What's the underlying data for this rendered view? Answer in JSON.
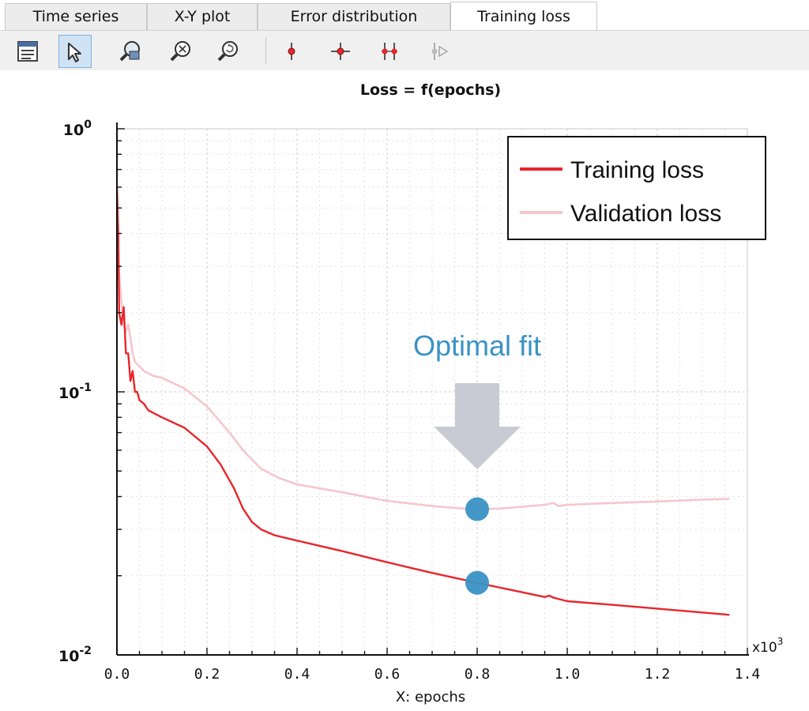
{
  "tabs": [
    {
      "label": "Time series"
    },
    {
      "label": "X-Y plot"
    },
    {
      "label": "Error distribution"
    },
    {
      "label": "Training loss",
      "active": true
    }
  ],
  "toolbar": {
    "buttons": [
      {
        "name": "properties-icon"
      },
      {
        "name": "cursor-select-icon",
        "selected": true
      },
      {
        "name": "zoom-region-icon"
      },
      {
        "name": "zoom-out-icon"
      },
      {
        "name": "zoom-reset-icon"
      },
      {
        "name": "marker-vertical-icon"
      },
      {
        "name": "marker-crosshair-icon"
      },
      {
        "name": "marker-double-icon"
      },
      {
        "name": "marker-play-icon"
      }
    ]
  },
  "chart_data": {
    "type": "line",
    "title": "Loss = f(epochs)",
    "xlabel": "X: epochs",
    "x_multiplier_label": "x10",
    "x_multiplier_exp": "3",
    "y_scale": "log",
    "xlim": [
      0.0,
      1.4
    ],
    "ylim": [
      0.01,
      1.0
    ],
    "x_ticks": [
      "0.0",
      "0.2",
      "0.4",
      "0.6",
      "0.8",
      "1.0",
      "1.2",
      "1.4"
    ],
    "y_ticks": [
      {
        "base": "10",
        "exp": "0",
        "value": 1.0
      },
      {
        "base": "10",
        "exp": "-1",
        "value": 0.1
      },
      {
        "base": "10",
        "exp": "-2",
        "value": 0.01
      }
    ],
    "grid": true,
    "legend_position": "top-right",
    "series": [
      {
        "name": "Training loss",
        "color": "#e8262b",
        "points": [
          [
            0.0,
            0.6
          ],
          [
            0.003,
            0.4
          ],
          [
            0.005,
            0.2
          ],
          [
            0.01,
            0.18
          ],
          [
            0.015,
            0.21
          ],
          [
            0.02,
            0.14
          ],
          [
            0.025,
            0.14
          ],
          [
            0.03,
            0.11
          ],
          [
            0.035,
            0.12
          ],
          [
            0.04,
            0.1
          ],
          [
            0.045,
            0.1
          ],
          [
            0.05,
            0.093
          ],
          [
            0.06,
            0.09
          ],
          [
            0.07,
            0.085
          ],
          [
            0.1,
            0.08
          ],
          [
            0.15,
            0.073
          ],
          [
            0.2,
            0.062
          ],
          [
            0.23,
            0.053
          ],
          [
            0.26,
            0.043
          ],
          [
            0.28,
            0.036
          ],
          [
            0.3,
            0.032
          ],
          [
            0.32,
            0.03
          ],
          [
            0.35,
            0.0285
          ],
          [
            0.4,
            0.0272
          ],
          [
            0.5,
            0.0248
          ],
          [
            0.6,
            0.0225
          ],
          [
            0.7,
            0.0205
          ],
          [
            0.8,
            0.0188
          ],
          [
            0.9,
            0.0173
          ],
          [
            0.95,
            0.0166
          ],
          [
            0.96,
            0.0168
          ],
          [
            0.97,
            0.0165
          ],
          [
            1.0,
            0.016
          ],
          [
            1.1,
            0.0155
          ],
          [
            1.2,
            0.015
          ],
          [
            1.3,
            0.0145
          ],
          [
            1.36,
            0.0142
          ]
        ]
      },
      {
        "name": "Validation loss",
        "color": "#f5c6cd",
        "points": [
          [
            0.0,
            0.5
          ],
          [
            0.003,
            0.35
          ],
          [
            0.005,
            0.28
          ],
          [
            0.01,
            0.22
          ],
          [
            0.015,
            0.18
          ],
          [
            0.02,
            0.17
          ],
          [
            0.025,
            0.18
          ],
          [
            0.03,
            0.16
          ],
          [
            0.035,
            0.14
          ],
          [
            0.04,
            0.13
          ],
          [
            0.05,
            0.125
          ],
          [
            0.06,
            0.12
          ],
          [
            0.08,
            0.115
          ],
          [
            0.1,
            0.113
          ],
          [
            0.15,
            0.103
          ],
          [
            0.2,
            0.088
          ],
          [
            0.25,
            0.07
          ],
          [
            0.28,
            0.06
          ],
          [
            0.32,
            0.051
          ],
          [
            0.36,
            0.047
          ],
          [
            0.4,
            0.0445
          ],
          [
            0.5,
            0.0415
          ],
          [
            0.6,
            0.0385
          ],
          [
            0.7,
            0.0368
          ],
          [
            0.75,
            0.0362
          ],
          [
            0.8,
            0.0358
          ],
          [
            0.85,
            0.036
          ],
          [
            0.9,
            0.0366
          ],
          [
            0.95,
            0.0372
          ],
          [
            0.97,
            0.0378
          ],
          [
            0.98,
            0.0368
          ],
          [
            1.0,
            0.0372
          ],
          [
            1.1,
            0.0378
          ],
          [
            1.2,
            0.0383
          ],
          [
            1.3,
            0.0389
          ],
          [
            1.36,
            0.0392
          ]
        ]
      }
    ],
    "annotation": {
      "text": "Optimal fit",
      "x": 0.8,
      "color": "#3a92c4",
      "arrow_color": "#c9cbd4",
      "markers": [
        {
          "x": 0.8,
          "y": 0.0358,
          "series": "Validation loss"
        },
        {
          "x": 0.8,
          "y": 0.0188,
          "series": "Training loss"
        }
      ]
    }
  }
}
